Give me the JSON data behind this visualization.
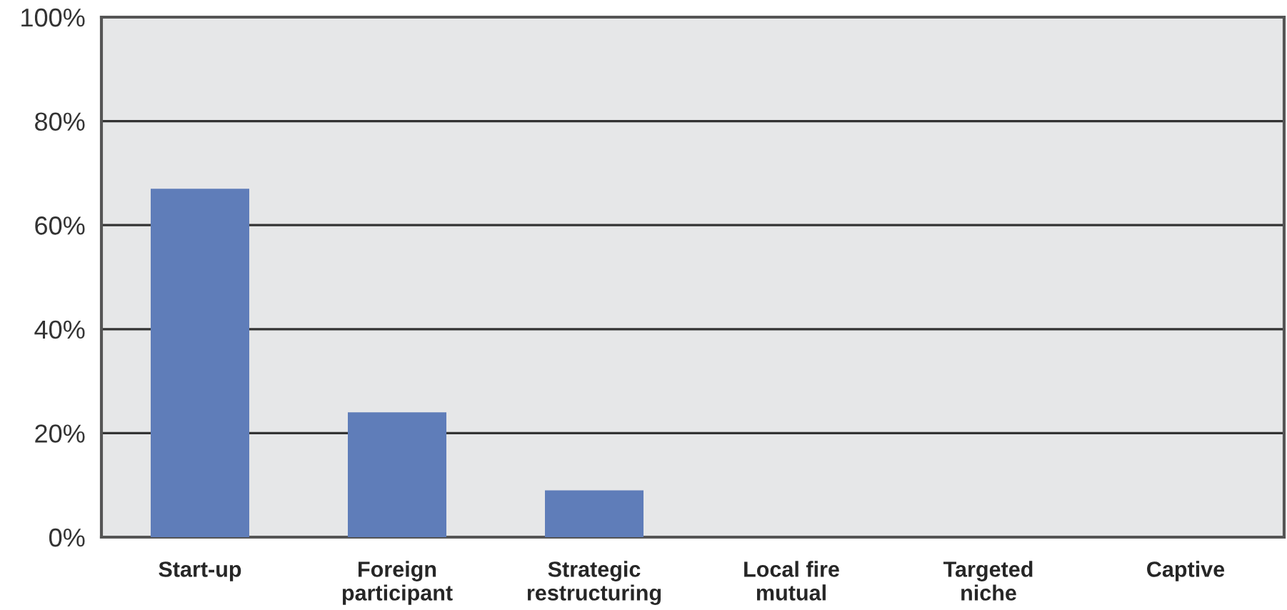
{
  "chart_data": {
    "type": "bar",
    "categories": [
      "Start-up",
      "Foreign\nparticipant",
      "Strategic\nrestructuring",
      "Local fire\nmutual",
      "Targeted\nniche",
      "Captive"
    ],
    "values": [
      67,
      24,
      9,
      0,
      0,
      0
    ],
    "color": "#5f7db9",
    "ylim": [
      0,
      100
    ],
    "yticks": [
      {
        "value": 0,
        "label": "0%"
      },
      {
        "value": 20,
        "label": "20%"
      },
      {
        "value": 40,
        "label": "40%"
      },
      {
        "value": 60,
        "label": "60%"
      },
      {
        "value": 80,
        "label": "80%"
      },
      {
        "value": 100,
        "label": "100%"
      }
    ],
    "grid": "y",
    "legend": false
  }
}
